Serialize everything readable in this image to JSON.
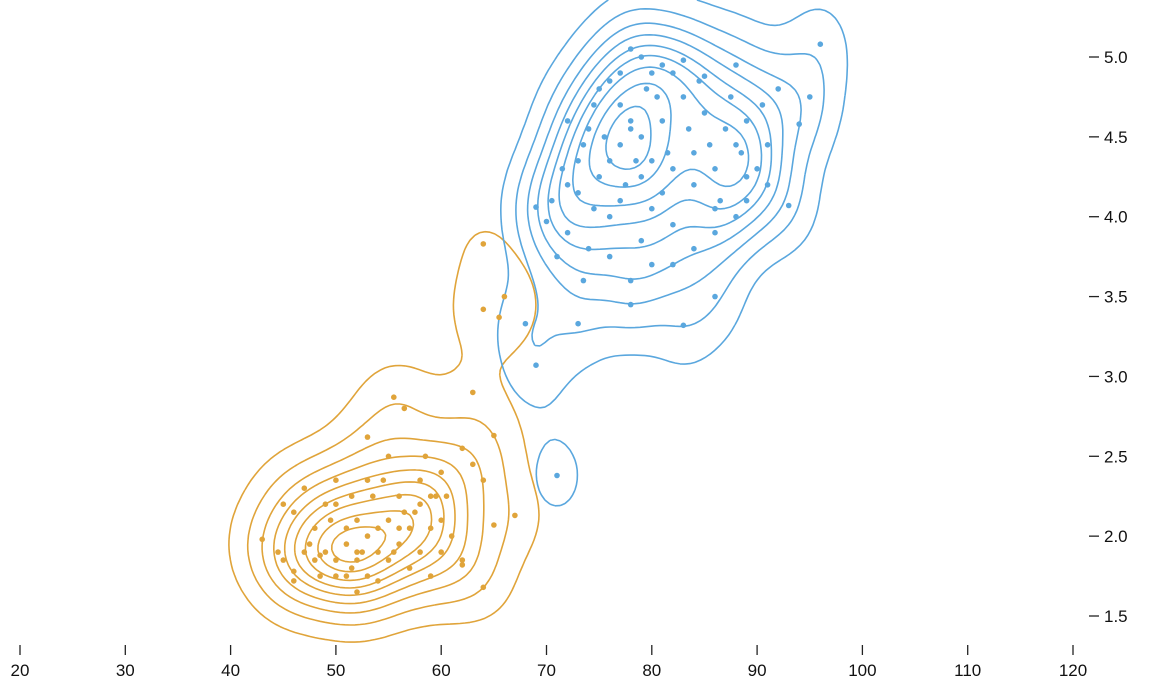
{
  "chart_data": {
    "type": "scatter",
    "title": "",
    "xlabel": "",
    "ylabel": "",
    "xlim": [
      20,
      120
    ],
    "ylim": [
      1.35,
      5.25
    ],
    "x_ticks": [
      "20",
      "30",
      "40",
      "50",
      "60",
      "70",
      "80",
      "90",
      "100",
      "110",
      "120"
    ],
    "y_ticks": [
      "1.5",
      "2.0",
      "2.5",
      "3.0",
      "3.5",
      "4.0",
      "4.5",
      "5.0"
    ],
    "y_axis_side": "right",
    "grid": false,
    "legend": "none",
    "series": [
      {
        "color": "#e0a43a",
        "points": [
          [
            43,
            1.98
          ],
          [
            44.5,
            1.9
          ],
          [
            45,
            2.2
          ],
          [
            45,
            1.85
          ],
          [
            46,
            1.78
          ],
          [
            46,
            2.15
          ],
          [
            47,
            1.9
          ],
          [
            47,
            2.3
          ],
          [
            47.5,
            1.95
          ],
          [
            48,
            1.85
          ],
          [
            48,
            2.05
          ],
          [
            48.5,
            1.75
          ],
          [
            49,
            2.2
          ],
          [
            49.5,
            2.1
          ],
          [
            49,
            1.9
          ],
          [
            50,
            1.85
          ],
          [
            50,
            2.35
          ],
          [
            50,
            2.2
          ],
          [
            51,
            1.95
          ],
          [
            51,
            2.05
          ],
          [
            51,
            1.75
          ],
          [
            51.5,
            2.25
          ],
          [
            51.5,
            1.8
          ],
          [
            52,
            1.9
          ],
          [
            52,
            2.1
          ],
          [
            52,
            1.85
          ],
          [
            52.5,
            1.9
          ],
          [
            53,
            2.0
          ],
          [
            53,
            2.35
          ],
          [
            53,
            1.75
          ],
          [
            53,
            2.62
          ],
          [
            53.5,
            2.25
          ],
          [
            54,
            1.9
          ],
          [
            54,
            2.05
          ],
          [
            54,
            1.72
          ],
          [
            54.5,
            2.35
          ],
          [
            55,
            2.1
          ],
          [
            55,
            1.85
          ],
          [
            55,
            2.5
          ],
          [
            55.5,
            1.9
          ],
          [
            56,
            2.05
          ],
          [
            56,
            1.95
          ],
          [
            56,
            2.25
          ],
          [
            56.5,
            2.15
          ],
          [
            57,
            2.05
          ],
          [
            57,
            1.8
          ],
          [
            57.5,
            2.15
          ],
          [
            58,
            2.35
          ],
          [
            58,
            1.9
          ],
          [
            58.5,
            2.5
          ],
          [
            59,
            2.25
          ],
          [
            59,
            2.05
          ],
          [
            59,
            1.75
          ],
          [
            59.5,
            2.25
          ],
          [
            60,
            2.1
          ],
          [
            60,
            1.9
          ],
          [
            60,
            2.4
          ],
          [
            60.5,
            2.25
          ],
          [
            61,
            2.0
          ],
          [
            62,
            2.55
          ],
          [
            62,
            1.85
          ],
          [
            63,
            2.45
          ],
          [
            63,
            2.9
          ],
          [
            64,
            2.35
          ],
          [
            64,
            1.68
          ],
          [
            64,
            3.83
          ],
          [
            64,
            3.42
          ],
          [
            65,
            2.07
          ],
          [
            65,
            2.63
          ],
          [
            65.5,
            3.37
          ],
          [
            66,
            3.5
          ],
          [
            67,
            2.13
          ],
          [
            52,
            1.65
          ],
          [
            50,
            1.75
          ],
          [
            48.5,
            1.88
          ],
          [
            55.5,
            2.87
          ],
          [
            56.5,
            2.8
          ],
          [
            62,
            1.82
          ],
          [
            46,
            1.72
          ],
          [
            58,
            2.2
          ]
        ]
      },
      {
        "color": "#5aa7de",
        "points": [
          [
            71,
            2.38
          ],
          [
            69,
            3.07
          ],
          [
            68,
            3.33
          ],
          [
            73,
            3.33
          ],
          [
            78,
            3.45
          ],
          [
            83,
            3.32
          ],
          [
            86,
            3.5
          ],
          [
            73.5,
            3.6
          ],
          [
            71,
            3.75
          ],
          [
            72,
            3.9
          ],
          [
            74,
            3.8
          ],
          [
            76,
            3.75
          ],
          [
            78,
            3.6
          ],
          [
            80,
            3.7
          ],
          [
            82,
            3.7
          ],
          [
            84,
            3.8
          ],
          [
            86,
            3.9
          ],
          [
            88,
            4.0
          ],
          [
            89,
            4.1
          ],
          [
            91,
            4.2
          ],
          [
            93,
            4.07
          ],
          [
            69,
            4.06
          ],
          [
            70,
            3.97
          ],
          [
            70.5,
            4.1
          ],
          [
            71.5,
            4.3
          ],
          [
            72,
            4.2
          ],
          [
            73,
            4.35
          ],
          [
            73.5,
            4.45
          ],
          [
            74,
            4.55
          ],
          [
            74.5,
            4.7
          ],
          [
            75,
            4.8
          ],
          [
            76,
            4.85
          ],
          [
            77,
            4.9
          ],
          [
            77,
            4.7
          ],
          [
            78,
            4.6
          ],
          [
            78,
            4.55
          ],
          [
            79,
            4.5
          ],
          [
            79.5,
            4.8
          ],
          [
            80,
            4.9
          ],
          [
            80.5,
            4.75
          ],
          [
            81,
            4.6
          ],
          [
            81.5,
            4.4
          ],
          [
            82,
            4.3
          ],
          [
            82,
            4.9
          ],
          [
            83,
            4.75
          ],
          [
            83.5,
            4.55
          ],
          [
            84,
            4.4
          ],
          [
            84,
            4.2
          ],
          [
            84.5,
            4.85
          ],
          [
            85,
            4.65
          ],
          [
            85.5,
            4.45
          ],
          [
            86,
            4.3
          ],
          [
            86.5,
            4.1
          ],
          [
            87,
            4.55
          ],
          [
            87.5,
            4.75
          ],
          [
            88,
            4.95
          ],
          [
            88.5,
            4.4
          ],
          [
            89,
            4.25
          ],
          [
            89,
            4.6
          ],
          [
            90,
            4.3
          ],
          [
            90.5,
            4.7
          ],
          [
            91,
            4.45
          ],
          [
            92,
            4.8
          ],
          [
            94,
            4.58
          ],
          [
            95,
            4.75
          ],
          [
            96,
            5.08
          ],
          [
            78,
            5.05
          ],
          [
            79,
            5.0
          ],
          [
            81,
            4.95
          ],
          [
            83,
            4.98
          ],
          [
            85,
            4.88
          ],
          [
            76,
            4.35
          ],
          [
            75,
            4.25
          ],
          [
            77,
            4.45
          ],
          [
            79,
            4.25
          ],
          [
            80,
            4.35
          ],
          [
            81,
            4.15
          ],
          [
            80,
            4.05
          ],
          [
            82,
            3.95
          ],
          [
            79,
            3.85
          ],
          [
            77,
            4.1
          ],
          [
            76,
            4.0
          ],
          [
            75.5,
            4.5
          ],
          [
            74.5,
            4.05
          ],
          [
            73,
            4.15
          ],
          [
            72,
            4.6
          ],
          [
            78.5,
            4.35
          ],
          [
            77.5,
            4.2
          ],
          [
            86,
            4.05
          ],
          [
            88,
            4.45
          ]
        ]
      }
    ]
  }
}
